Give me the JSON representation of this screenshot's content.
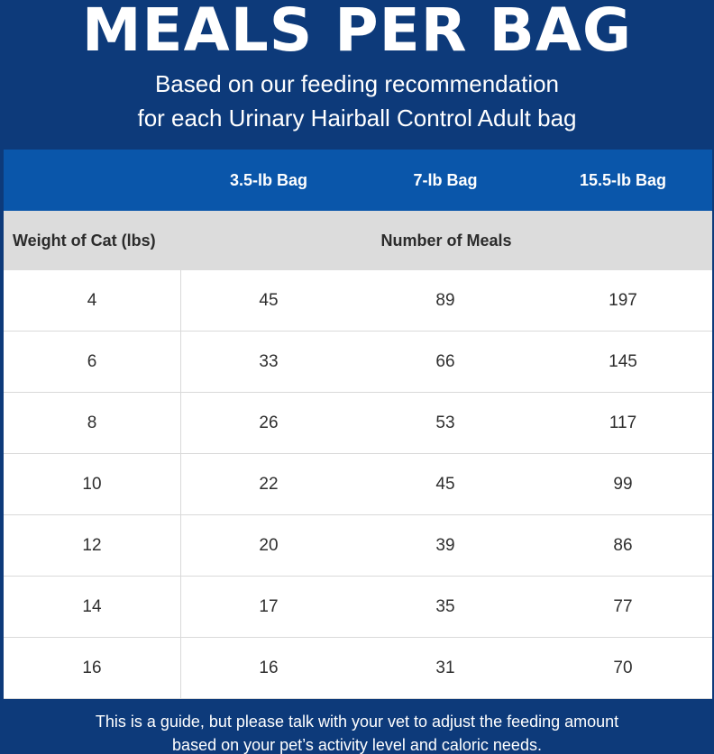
{
  "header": {
    "title": "MEALS PER BAG",
    "subtitle_line1": "Based on our feeding recommendation",
    "subtitle_line2": "for each Urinary Hairball Control Adult bag"
  },
  "table": {
    "bag_sizes": [
      "3.5-lb Bag",
      "7-lb Bag",
      "15.5-lb Bag"
    ],
    "weight_label": "Weight of Cat (lbs)",
    "meals_label": "Number of Meals",
    "rows": [
      {
        "weight": "4",
        "bag1": "45",
        "bag2": "89",
        "bag3": "197"
      },
      {
        "weight": "6",
        "bag1": "33",
        "bag2": "66",
        "bag3": "145"
      },
      {
        "weight": "8",
        "bag1": "26",
        "bag2": "53",
        "bag3": "117"
      },
      {
        "weight": "10",
        "bag1": "22",
        "bag2": "45",
        "bag3": "99"
      },
      {
        "weight": "12",
        "bag1": "20",
        "bag2": "39",
        "bag3": "86"
      },
      {
        "weight": "14",
        "bag1": "17",
        "bag2": "35",
        "bag3": "77"
      },
      {
        "weight": "16",
        "bag1": "16",
        "bag2": "31",
        "bag3": "70"
      }
    ]
  },
  "footer": {
    "line1": "This is a guide, but please talk with your vet to adjust the feeding amount",
    "line2": "based on your pet’s activity level and caloric needs."
  },
  "colors": {
    "navy": "#0d3a7a",
    "header_blue": "#0a56aa",
    "label_gray": "#dcdcdc"
  }
}
